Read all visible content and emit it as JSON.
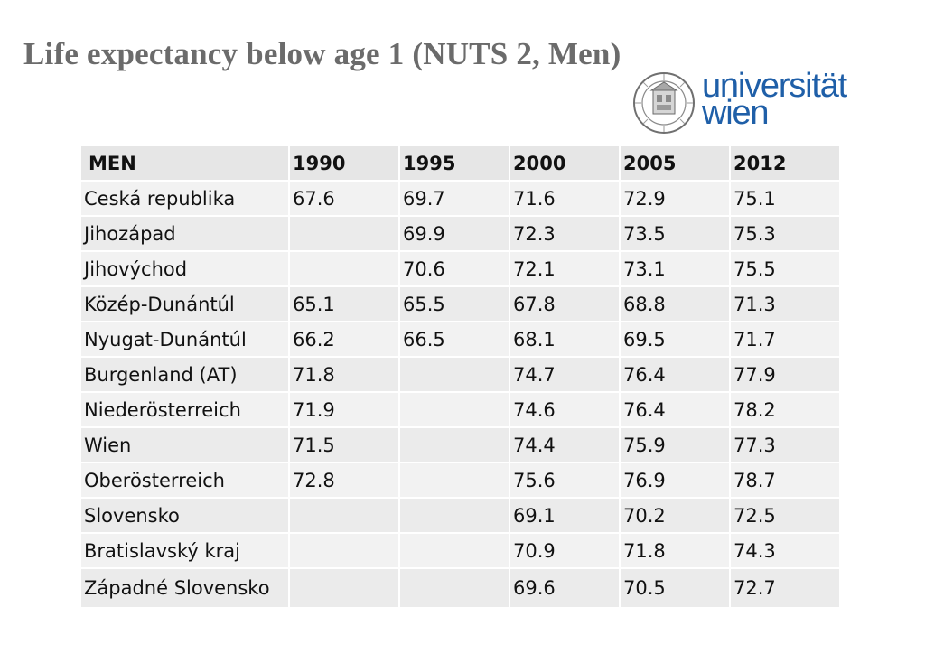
{
  "title": "Life expectancy below age 1  (NUTS 2, Men)",
  "logo": {
    "line1": "universität",
    "line2": "wien",
    "seal_text": "UNIVERSITAS VINDOBONENSIS",
    "color": "#1f5fa8"
  },
  "table": {
    "headers": [
      "MEN",
      "1990",
      "1995",
      "2000",
      "2005",
      "2012"
    ],
    "rows": [
      [
        "Ceská republika",
        "67.6",
        "69.7",
        "71.6",
        "72.9",
        "75.1"
      ],
      [
        "Jihozápad",
        "",
        "69.9",
        "72.3",
        "73.5",
        "75.3"
      ],
      [
        "Jihovýchod",
        "",
        "70.6",
        "72.1",
        "73.1",
        "75.5"
      ],
      [
        "Közép-Dunántúl",
        "65.1",
        "65.5",
        "67.8",
        "68.8",
        "71.3"
      ],
      [
        "Nyugat-Dunántúl",
        "66.2",
        "66.5",
        "68.1",
        "69.5",
        "71.7"
      ],
      [
        "Burgenland (AT)",
        "71.8",
        "",
        "74.7",
        "76.4",
        "77.9"
      ],
      [
        "Niederösterreich",
        "71.9",
        "",
        "74.6",
        "76.4",
        "78.2"
      ],
      [
        "Wien",
        "71.5",
        "",
        "74.4",
        "75.9",
        "77.3"
      ],
      [
        "Oberösterreich",
        "72.8",
        "",
        "75.6",
        "76.9",
        "78.7"
      ],
      [
        "Slovensko",
        "",
        "",
        "69.1",
        "70.2",
        "72.5"
      ],
      [
        "Bratislavský kraj",
        "",
        "",
        "70.9",
        "71.8",
        "74.3"
      ],
      [
        "Západné Slovensko",
        "",
        "",
        "69.6",
        "70.5",
        "72.7"
      ]
    ]
  }
}
